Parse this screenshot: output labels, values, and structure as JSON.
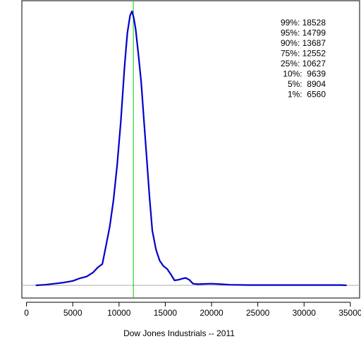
{
  "chart_data": {
    "type": "line",
    "title": "",
    "xlabel": "Dow Jones Industrials -- 2011",
    "ylabel": "",
    "xlim": [
      -500,
      36000
    ],
    "ylim": [
      -0.02,
      1.0
    ],
    "x_ticks": [
      0,
      5000,
      10000,
      15000,
      20000,
      25000,
      30000,
      35000
    ],
    "grid": false,
    "series": [
      {
        "color": "#0000cc",
        "x": [
          1000,
          2000,
          3000,
          4000,
          5000,
          5800,
          6500,
          7200,
          7700,
          8200,
          8600,
          9000,
          9400,
          9800,
          10200,
          10600,
          10900,
          11200,
          11400,
          11600,
          11800,
          12100,
          12400,
          12700,
          13000,
          13300,
          13600,
          14000,
          14400,
          14800,
          15200,
          15600,
          16000,
          16400,
          16800,
          17200,
          17600,
          18000,
          18500,
          19000,
          20000,
          21000,
          22000,
          24000,
          26000,
          28000,
          30000,
          32000,
          34000,
          34600
        ],
        "y": [
          0.0,
          0.002,
          0.006,
          0.01,
          0.016,
          0.026,
          0.032,
          0.047,
          0.065,
          0.078,
          0.145,
          0.215,
          0.31,
          0.44,
          0.6,
          0.8,
          0.92,
          0.985,
          1.0,
          0.975,
          0.935,
          0.84,
          0.74,
          0.6,
          0.46,
          0.32,
          0.2,
          0.13,
          0.09,
          0.07,
          0.06,
          0.04,
          0.018,
          0.02,
          0.024,
          0.027,
          0.02,
          0.006,
          0.004,
          0.005,
          0.006,
          0.004,
          0.002,
          0.001,
          0.001,
          0.001,
          0.001,
          0.001,
          0.001,
          0.0
        ]
      }
    ],
    "vline": {
      "x": 11550,
      "color": "#00cc00"
    },
    "baseline": {
      "y": 0,
      "color": "#aaaaaa"
    },
    "annotations": [
      "99%: 18528",
      "95%: 14799",
      "90%: 13687",
      "75%: 12552",
      "25%: 10627",
      "10%:  9639",
      "5%:  8904",
      "1%:  6560"
    ]
  }
}
